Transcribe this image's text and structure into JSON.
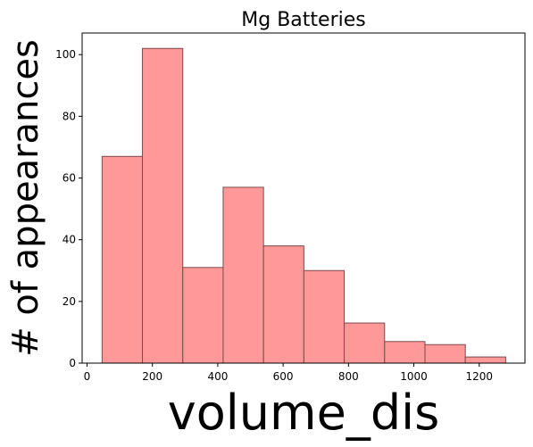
{
  "chart_data": {
    "type": "bar",
    "title": "Mg Batteries",
    "xlabel": "volume_dis",
    "ylabel": "# of appearances",
    "bin_edges": [
      46,
      169.5,
      293,
      416.5,
      540,
      663.5,
      787,
      910.5,
      1034,
      1157.5,
      1281
    ],
    "values": [
      67,
      102,
      31,
      57,
      38,
      30,
      13,
      7,
      6,
      2
    ],
    "xlim": [
      -15,
      1340
    ],
    "ylim": [
      0,
      107
    ],
    "x_ticks": [
      0,
      200,
      400,
      600,
      800,
      1000,
      1200
    ],
    "y_ticks": [
      0,
      20,
      40,
      60,
      80,
      100
    ],
    "grid": false,
    "colors": {
      "bar_fill": "#ff9999",
      "bar_edge": "#7a4a4a"
    }
  }
}
